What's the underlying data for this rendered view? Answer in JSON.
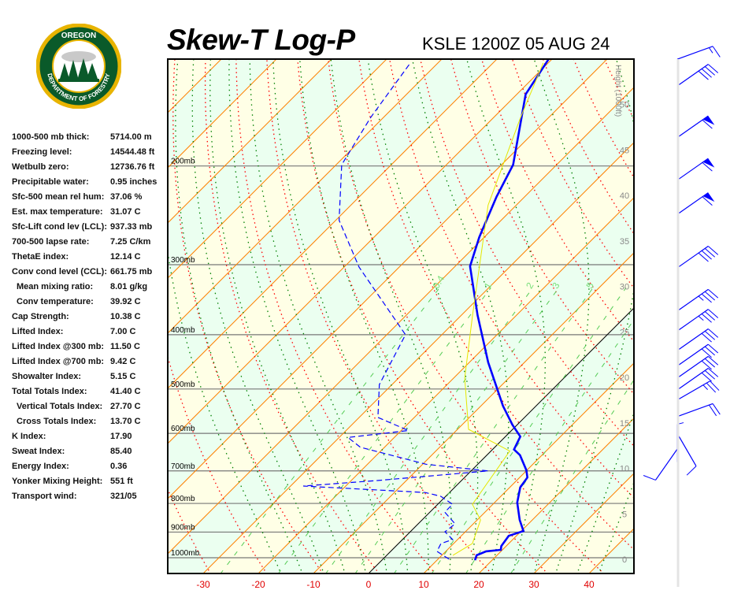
{
  "header": {
    "title": "Skew-T Log-P",
    "station_time": "KSLE 1200Z 05 AUG 24",
    "logo_text_top": "OREGON",
    "logo_text_bottom": "DEPARTMENT OF FORESTRY"
  },
  "stats": [
    {
      "label": "1000-500 mb thick:",
      "value": "5714.00 m"
    },
    {
      "label": "Freezing level:",
      "value": "14544.48 ft"
    },
    {
      "label": "Wetbulb zero:",
      "value": "12736.76 ft"
    },
    {
      "label": "Precipitable water:",
      "value": "0.95 inches"
    },
    {
      "label": "Sfc-500 mean rel hum:",
      "value": "37.06 %"
    },
    {
      "label": "Est. max temperature:",
      "value": "31.07 C"
    },
    {
      "label": "Sfc-Lift cond lev (LCL):",
      "value": "937.33 mb"
    },
    {
      "label": "700-500 lapse rate:",
      "value": "7.25 C/km"
    },
    {
      "label": "ThetaE index:",
      "value": "12.14 C"
    },
    {
      "label": "Conv cond level (CCL):",
      "value": "661.75 mb"
    },
    {
      "label": "Mean mixing ratio:",
      "value": "8.01 g/kg",
      "indent": true
    },
    {
      "label": "Conv temperature:",
      "value": "39.92 C",
      "indent": true
    },
    {
      "label": "Cap Strength:",
      "value": "10.38 C"
    },
    {
      "label": "Lifted Index:",
      "value": "7.00 C"
    },
    {
      "label": "Lifted Index @300 mb:",
      "value": "11.50 C"
    },
    {
      "label": "Lifted Index @700 mb:",
      "value": "9.42 C"
    },
    {
      "label": "Showalter Index:",
      "value": "5.15 C"
    },
    {
      "label": "Total Totals Index:",
      "value": "41.40 C"
    },
    {
      "label": "Vertical Totals Index:",
      "value": "27.70 C",
      "indent": true
    },
    {
      "label": "Cross Totals Index:",
      "value": "13.70 C",
      "indent": true
    },
    {
      "label": "K Index:",
      "value": "17.90"
    },
    {
      "label": "Sweat Index:",
      "value": "85.40"
    },
    {
      "label": "Energy Index:",
      "value": "0.36"
    },
    {
      "label": "Yonker Mixing Height:",
      "value": "551 ft"
    },
    {
      "label": "Transport wind:",
      "value": "321/05"
    }
  ],
  "chart_data": {
    "type": "line",
    "subtype": "skew-t log-p",
    "pressure_axis": {
      "scale": "log",
      "range_mb": [
        1067,
        129
      ],
      "labels": [
        "200mb",
        "300mb",
        "400mb",
        "500mb",
        "600mb",
        "700mb",
        "800mb",
        "900mb",
        "1000mb"
      ],
      "levels": [
        200,
        300,
        400,
        500,
        600,
        700,
        800,
        900,
        1000
      ]
    },
    "temperature_axis": {
      "ticks": [
        -30,
        -20,
        -10,
        0,
        10,
        20,
        30,
        40
      ],
      "tick_labels": [
        "-30",
        "-20",
        "-10",
        "0",
        "10",
        "20",
        "30",
        "40"
      ],
      "skew": "45 degrees",
      "isotherm_interval_c": 10
    },
    "height_axis": {
      "label": "Height (1000ft)",
      "ticks": [
        0,
        5,
        10,
        15,
        20,
        25,
        30,
        35,
        40,
        45,
        50
      ],
      "tick_labels": [
        "0",
        "5",
        "10",
        "15",
        "20",
        "25",
        "30",
        "35",
        "40",
        "45",
        "50"
      ]
    },
    "mixing_ratio_lines_gkg": [
      0.4,
      1,
      2,
      3,
      5,
      8,
      12,
      20
    ],
    "mixing_ratio_labels": [
      "0.4",
      "1",
      "2",
      "3",
      "5"
    ],
    "series": [
      {
        "role": "temperature",
        "color": "#0000ff",
        "style": "solid",
        "points": [
          [
            1010,
            16.9
          ],
          [
            990,
            16.3
          ],
          [
            974,
            17.3
          ],
          [
            968,
            19.7
          ],
          [
            953,
            19.1
          ],
          [
            914,
            18.6
          ],
          [
            896,
            20.4
          ],
          [
            856,
            17.7
          ],
          [
            797,
            14.1
          ],
          [
            749,
            11.9
          ],
          [
            719,
            11.4
          ],
          [
            698,
            9.9
          ],
          [
            656,
            6.0
          ],
          [
            641,
            3.9
          ],
          [
            608,
            2.7
          ],
          [
            579,
            -0.9
          ],
          [
            536,
            -6.0
          ],
          [
            448,
            -16.6
          ],
          [
            369,
            -27.1
          ],
          [
            302,
            -37.3
          ],
          [
            268,
            -40.9
          ],
          [
            227,
            -45.1
          ],
          [
            199,
            -47.9
          ],
          [
            149,
            -58.4
          ],
          [
            129,
            -60.6
          ]
        ]
      },
      {
        "role": "dewpoint",
        "color": "#0000ff",
        "style": "dashed",
        "points": [
          [
            1006,
            12.0
          ],
          [
            974,
            8.4
          ],
          [
            943,
            7.7
          ],
          [
            928,
            9.1
          ],
          [
            899,
            6.3
          ],
          [
            870,
            6.7
          ],
          [
            829,
            2.7
          ],
          [
            803,
            2.7
          ],
          [
            777,
            -0.9
          ],
          [
            765,
            -4.4
          ],
          [
            745,
            -27.7
          ],
          [
            728,
            -15.1
          ],
          [
            700,
            3.1
          ],
          [
            681,
            -9.4
          ],
          [
            635,
            -24.4
          ],
          [
            610,
            -28.4
          ],
          [
            593,
            -18.7
          ],
          [
            562,
            -26.6
          ],
          [
            491,
            -32.3
          ],
          [
            400,
            -36.6
          ],
          [
            303,
            -57.3
          ],
          [
            250,
            -69.4
          ],
          [
            199,
            -79.0
          ],
          [
            164,
            -82.3
          ],
          [
            131,
            -85.0
          ]
        ]
      },
      {
        "role": "wet-bulb",
        "color": "#e6e600",
        "style": "solid/dashed",
        "points": [
          [
            990,
            12.0
          ],
          [
            943,
            13.4
          ],
          [
            856,
            10.6
          ],
          [
            803,
            6.3
          ],
          [
            645,
            3.4
          ],
          [
            590,
            -8.0
          ],
          [
            478,
            -18.0
          ],
          [
            369,
            -28.0
          ],
          [
            235,
            -45.1
          ],
          [
            164,
            -55.1
          ],
          [
            131,
            -60.9
          ]
        ]
      },
      {
        "role": "0C isotherm",
        "color": "#000000",
        "style": "solid"
      }
    ],
    "wind_barbs": [
      [
        129,
        250,
        15
      ],
      [
        144,
        235,
        40
      ],
      [
        178,
        235,
        60
      ],
      [
        212,
        235,
        60
      ],
      [
        244,
        235,
        60
      ],
      [
        304,
        235,
        40
      ],
      [
        363,
        235,
        35
      ],
      [
        394,
        235,
        35
      ],
      [
        427,
        235,
        30
      ],
      [
        455,
        235,
        30
      ],
      [
        478,
        235,
        30
      ],
      [
        502,
        235,
        30
      ],
      [
        523,
        240,
        25
      ],
      [
        560,
        250,
        20
      ],
      [
        600,
        330,
        10
      ],
      [
        640,
        35,
        10
      ],
      [
        675,
        180,
        5
      ]
    ],
    "colors": {
      "temperature": "#0000ff",
      "isotherms": "#ff8000",
      "dry_adiabats": "#ff0000",
      "moist_adiabats": "#008000",
      "mixing_ratio": "#55cc55",
      "band_a": "#ffffe6",
      "band_b": "#ebfff0"
    }
  }
}
